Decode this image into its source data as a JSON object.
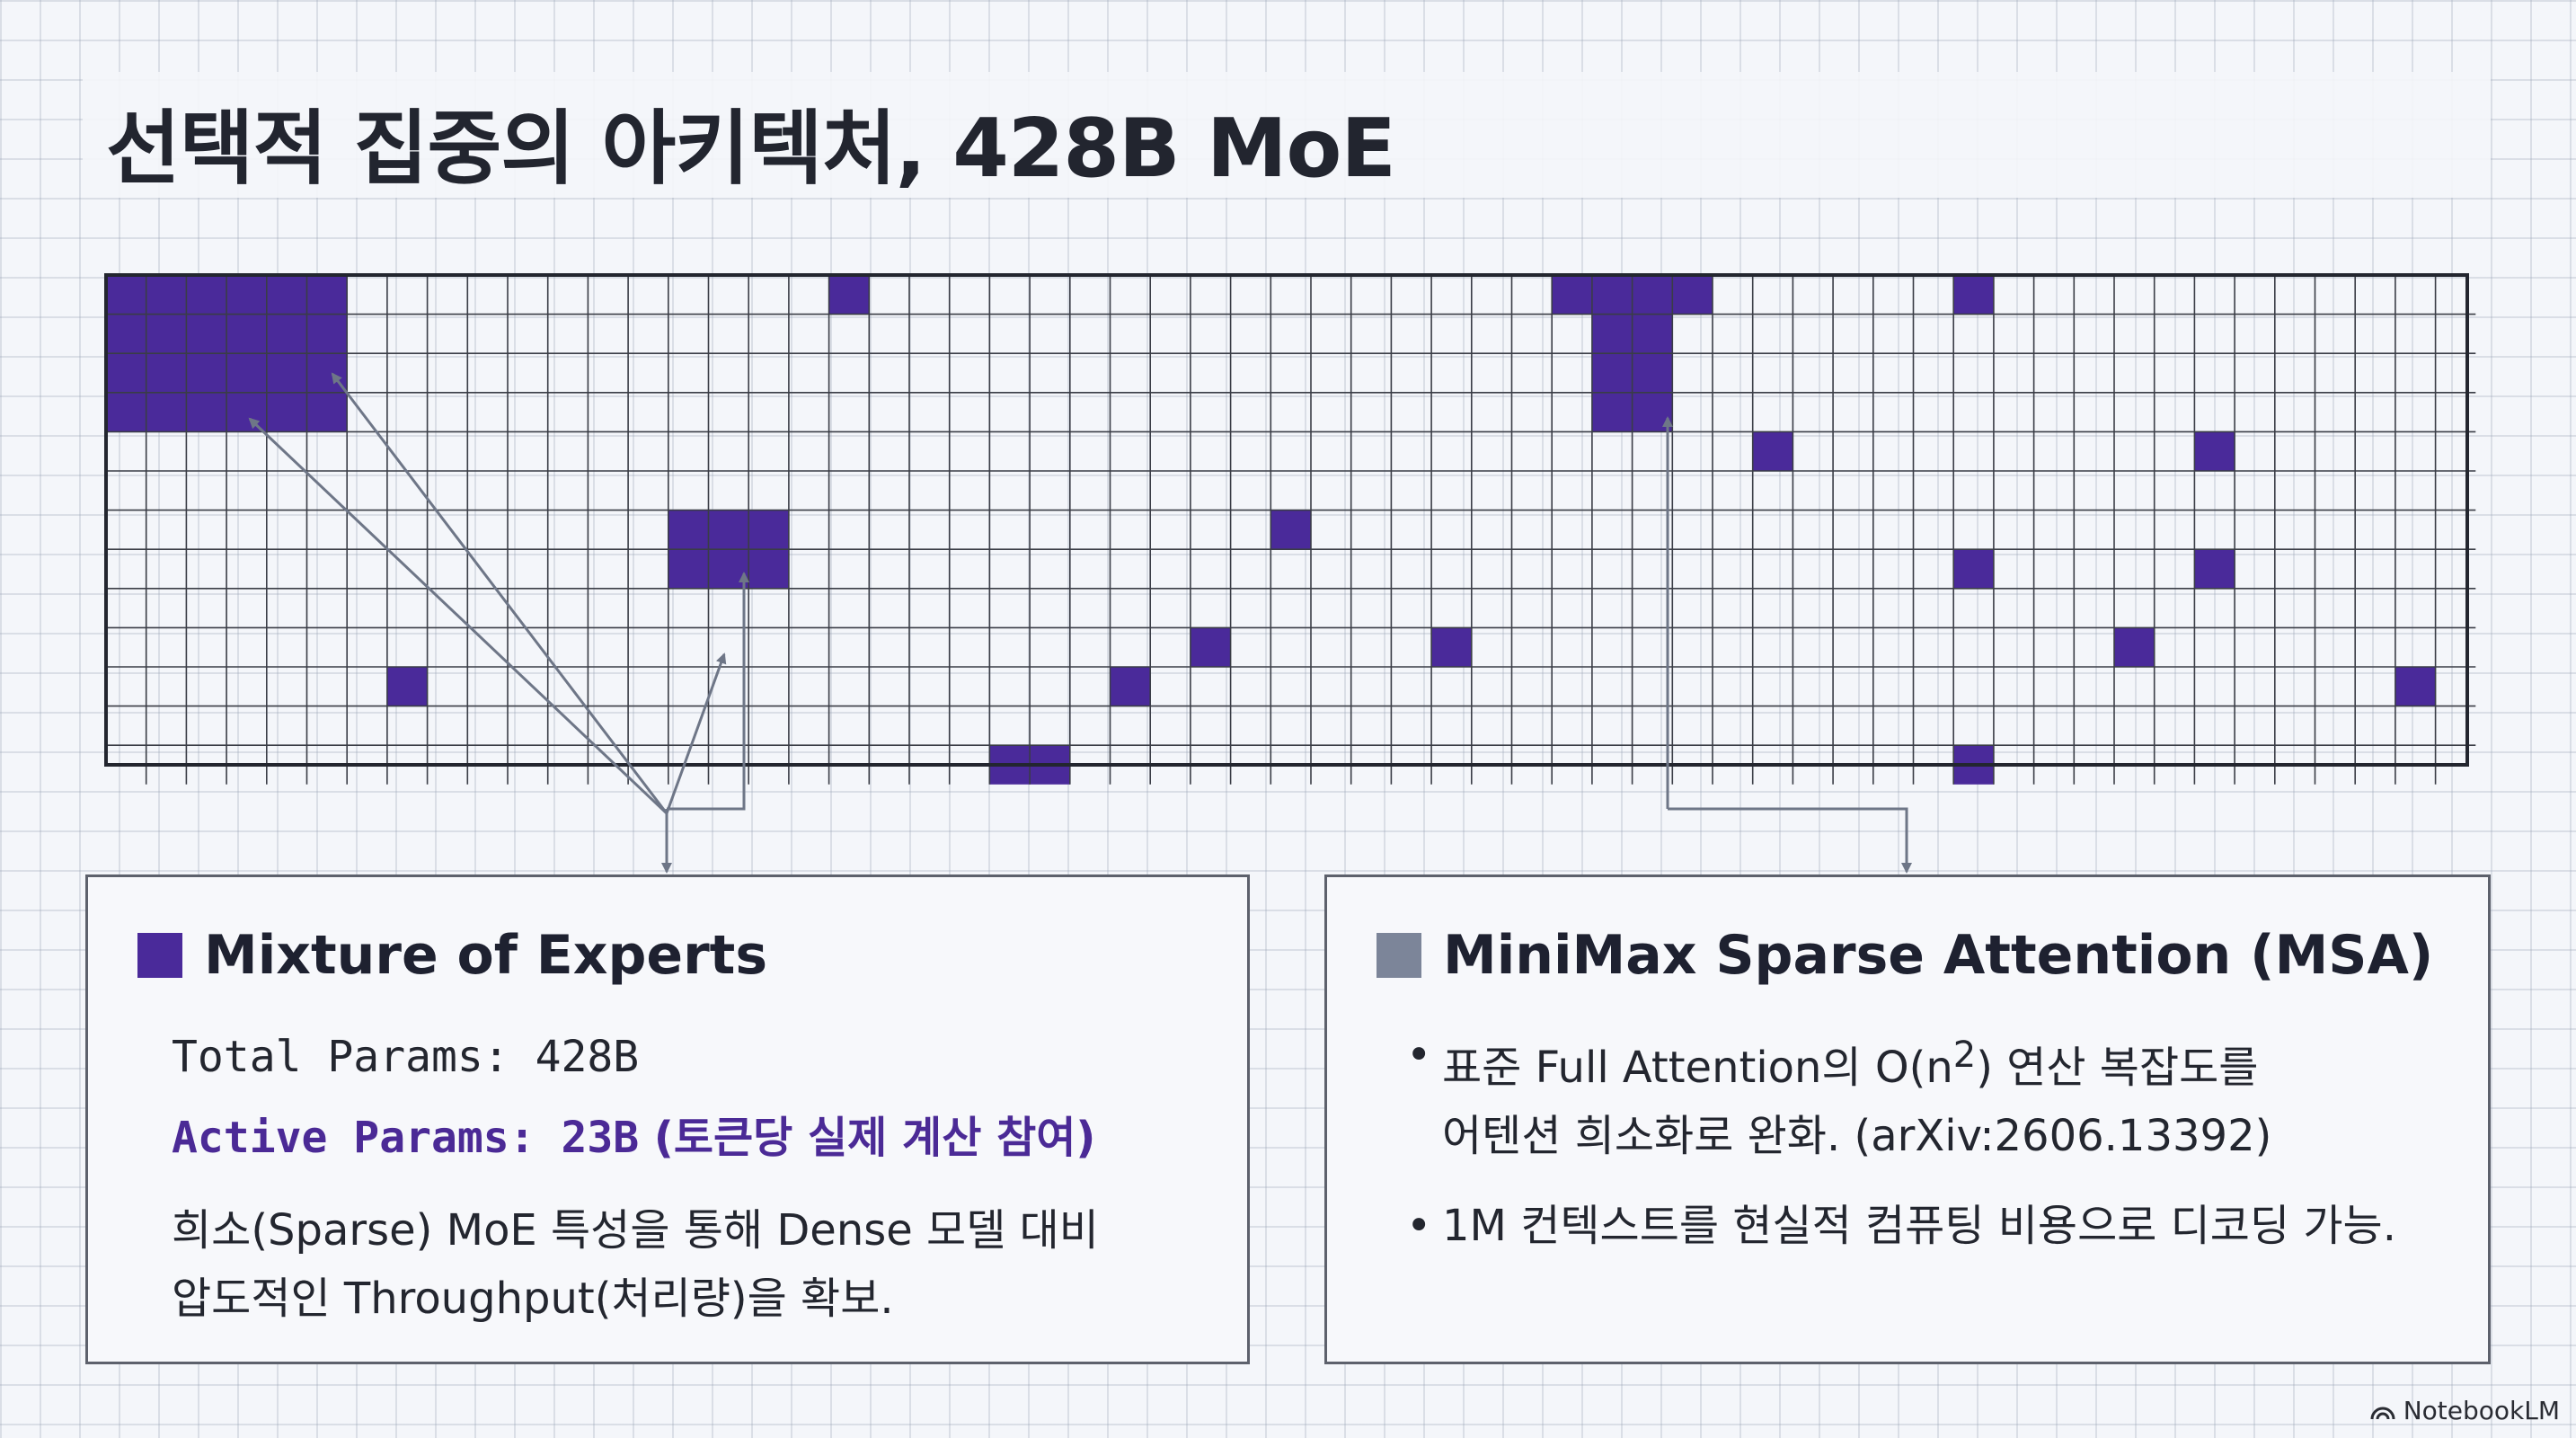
{
  "title": "선택적 집중의 아키텍처, 428B MoE",
  "colors": {
    "expert_active": "#4a2a9a",
    "msa_legend": "#7c8599",
    "grid_line": "#3a3d46",
    "arrow": "#6e7687"
  },
  "icons": {
    "moe_legend": "square-swatch-icon",
    "msa_legend": "square-swatch-icon",
    "brand": "notebooklm-logo-icon"
  },
  "moe_panel": {
    "heading": "Mixture of Experts",
    "total_params": "Total Params: 428B",
    "active_params": "Active Params: 23B",
    "active_note": " (토큰당 실제 계산 참여)",
    "description_line1": "희소(Sparse) MoE 특성을 통해 Dense 모델 대비",
    "description_line2": "압도적인 Throughput(처리량)을 확보."
  },
  "msa_panel": {
    "heading": "MiniMax Sparse Attention (MSA)",
    "bullet_1_a": "표준 Full Attention의 O(n",
    "bullet_1_sup": "2",
    "bullet_1_b": ") 연산 복잡도를",
    "bullet_1_line2": "어텐션 희소화로 완화. (arXiv:2606.13392)",
    "bullet_2": "1M 컨텍스트를 현실적 컴퓨팅 비용으로 디코딩 가능.",
    "bullet_symbol": "•"
  },
  "brand": "NotebookLM"
}
